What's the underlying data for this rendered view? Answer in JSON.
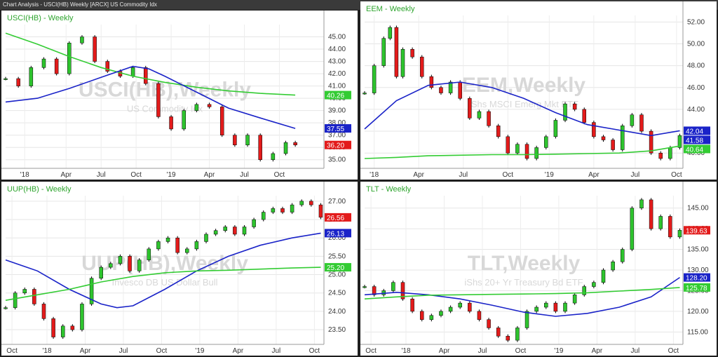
{
  "window": {
    "title": "Chart Analysis - USCI(HB) Weekly [ARCX] US Commodity Idx"
  },
  "chart_data": [
    {
      "panel": "top-left",
      "type": "line",
      "label": "USCI(HB) - Weekly",
      "watermark_title": "USCI(HB),Weekly",
      "watermark_subtitle": "US Commodity Idx",
      "ylim": [
        34.3,
        46.0
      ],
      "y_ticks": [
        "45.00",
        "44.00",
        "43.00",
        "42.00",
        "41.00",
        "40.00",
        "39.00",
        "38.00",
        "37.00",
        "36.00",
        "35.00"
      ],
      "y_tick_values": [
        45,
        44,
        43,
        42,
        41,
        40,
        39,
        38,
        37,
        36,
        35
      ],
      "x_range": [
        0,
        100
      ],
      "x_ticks": [
        "'18",
        "Apr",
        "Jul",
        "Oct",
        "'19",
        "Apr",
        "Jul",
        "Oct"
      ],
      "x_tick_pos": [
        6,
        19,
        30,
        41,
        52,
        64,
        75,
        86
      ],
      "series": [
        {
          "name": "price",
          "color": "#000000",
          "x": [
            0,
            4,
            8,
            12,
            16,
            20,
            24,
            28,
            32,
            36,
            40,
            44,
            48,
            52,
            56,
            60,
            64,
            68,
            72,
            76,
            80,
            84,
            88,
            91
          ],
          "values": [
            41.6,
            41.0,
            42.5,
            43.2,
            42.0,
            44.5,
            45.0,
            43.0,
            42.2,
            41.8,
            42.5,
            41.2,
            38.5,
            37.5,
            39.0,
            39.5,
            39.3,
            37.0,
            36.2,
            37.0,
            35.0,
            35.5,
            36.4,
            36.2
          ]
        },
        {
          "name": "MA slow",
          "color": "#33cc33",
          "x": [
            0,
            10,
            20,
            30,
            40,
            50,
            60,
            70,
            80,
            91
          ],
          "values": [
            45.3,
            44.4,
            43.4,
            42.5,
            41.8,
            41.3,
            40.9,
            40.6,
            40.4,
            40.26
          ]
        },
        {
          "name": "MA fast",
          "color": "#1a23c8",
          "x": [
            0,
            10,
            20,
            30,
            40,
            45,
            50,
            60,
            70,
            80,
            91
          ],
          "values": [
            39.7,
            40.0,
            40.8,
            41.7,
            42.6,
            42.4,
            41.8,
            40.5,
            39.2,
            38.4,
            37.55
          ]
        }
      ],
      "value_badges": [
        {
          "value": "40.26",
          "color": "#33cc33"
        },
        {
          "value": "37.55",
          "color": "#1a23c8"
        },
        {
          "value": "36.20",
          "color": "#e31b1b"
        }
      ]
    },
    {
      "panel": "top-right",
      "type": "line",
      "label": "EEM - Weekly",
      "watermark_title": "EEM,Weekly",
      "watermark_subtitle": "iShs MSCI Emerg Mkt ETF",
      "ylim": [
        38.6,
        52.6
      ],
      "y_ticks": [
        "52.00",
        "50.00",
        "48.00",
        "46.00",
        "44.00",
        "42.00",
        "40.00"
      ],
      "y_tick_values": [
        52,
        50,
        48,
        46,
        44,
        42,
        40
      ],
      "x_range": [
        0,
        100
      ],
      "x_ticks": [
        "'18",
        "Apr",
        "Jul",
        "Oct",
        "'19",
        "Apr",
        "Jul",
        "Oct"
      ],
      "x_tick_pos": [
        3,
        17,
        31,
        45,
        58,
        72,
        85,
        98
      ],
      "series": [
        {
          "name": "price",
          "color": "#000000",
          "x": [
            0,
            3,
            6,
            8,
            10,
            12,
            15,
            18,
            21,
            24,
            27,
            30,
            33,
            36,
            39,
            42,
            45,
            48,
            51,
            54,
            57,
            60,
            63,
            66,
            69,
            72,
            75,
            78,
            81,
            84,
            87,
            90,
            93,
            96,
            99
          ],
          "values": [
            45.5,
            48.0,
            50.5,
            51.5,
            47.0,
            49.5,
            48.8,
            47.0,
            46.0,
            45.5,
            46.5,
            45.0,
            43.2,
            43.8,
            42.5,
            41.5,
            40.0,
            40.8,
            39.5,
            40.5,
            41.5,
            43.0,
            44.5,
            44.0,
            42.8,
            41.5,
            41.2,
            40.3,
            42.5,
            43.5,
            42.0,
            40.0,
            39.5,
            40.5,
            41.6
          ]
        },
        {
          "name": "MA fast",
          "color": "#1a23c8",
          "x": [
            0,
            10,
            20,
            30,
            40,
            50,
            60,
            70,
            80,
            90,
            99
          ],
          "values": [
            42.2,
            44.8,
            46.2,
            46.5,
            46.0,
            45.0,
            43.7,
            42.6,
            42.1,
            41.6,
            42.04
          ]
        },
        {
          "name": "MA slow",
          "color": "#33cc33",
          "x": [
            0,
            10,
            20,
            30,
            40,
            50,
            60,
            70,
            80,
            90,
            99
          ],
          "values": [
            39.5,
            39.6,
            39.75,
            39.8,
            39.85,
            39.85,
            39.9,
            39.95,
            40.0,
            40.2,
            40.64
          ]
        }
      ],
      "value_badges": [
        {
          "value": "42.04",
          "color": "#1a23c8"
        },
        {
          "value": "41.58",
          "color": "#1a23c8"
        },
        {
          "value": "40.64",
          "color": "#33cc33"
        }
      ]
    },
    {
      "panel": "bottom-left",
      "type": "line",
      "label": "UUP(HB) - Weekly",
      "watermark_title": "UUP(HB),Weekly",
      "watermark_subtitle": "Invesco DB US Dollar Bull",
      "ylim": [
        23.1,
        27.15
      ],
      "y_ticks": [
        "27.00",
        "26.50",
        "26.00",
        "25.50",
        "25.00",
        "24.50",
        "24.00",
        "23.50"
      ],
      "y_tick_values": [
        27,
        26.5,
        26,
        25.5,
        25,
        24.5,
        24,
        23.5
      ],
      "x_range": [
        0,
        100
      ],
      "x_ticks": [
        "Oct",
        "'18",
        "Apr",
        "Jul",
        "Oct",
        "'19",
        "Apr",
        "Jul",
        "Oct"
      ],
      "x_tick_pos": [
        2,
        13,
        25,
        37,
        49,
        61,
        73,
        85,
        97
      ],
      "series": [
        {
          "name": "price",
          "color": "#000000",
          "x": [
            0,
            3,
            6,
            9,
            12,
            15,
            18,
            21,
            24,
            27,
            30,
            33,
            36,
            39,
            42,
            45,
            48,
            51,
            54,
            57,
            60,
            63,
            66,
            69,
            72,
            75,
            78,
            81,
            84,
            87,
            90,
            93,
            96,
            99
          ],
          "values": [
            24.1,
            24.5,
            24.6,
            24.2,
            23.8,
            23.3,
            23.6,
            23.5,
            24.2,
            24.9,
            25.2,
            25.3,
            25.5,
            25.1,
            25.4,
            25.7,
            25.9,
            26.0,
            25.6,
            25.7,
            25.9,
            26.1,
            26.2,
            26.3,
            26.1,
            26.3,
            26.5,
            26.7,
            26.8,
            26.7,
            26.9,
            27.0,
            26.9,
            26.56
          ]
        },
        {
          "name": "MA fast",
          "color": "#1a23c8",
          "x": [
            0,
            10,
            20,
            30,
            35,
            40,
            50,
            60,
            70,
            80,
            90,
            99
          ],
          "values": [
            25.4,
            25.1,
            24.6,
            24.2,
            24.1,
            24.15,
            24.6,
            25.1,
            25.5,
            25.8,
            26.0,
            26.13
          ]
        },
        {
          "name": "MA slow",
          "color": "#33cc33",
          "x": [
            0,
            10,
            20,
            30,
            40,
            50,
            60,
            70,
            80,
            90,
            99
          ],
          "values": [
            24.3,
            24.45,
            24.6,
            24.8,
            24.95,
            25.05,
            25.1,
            25.12,
            25.15,
            25.18,
            25.2
          ]
        }
      ],
      "value_badges": [
        {
          "value": "26.56",
          "color": "#e31b1b"
        },
        {
          "value": "26.13",
          "color": "#1a23c8"
        },
        {
          "value": "25.20",
          "color": "#33cc33"
        }
      ]
    },
    {
      "panel": "bottom-right",
      "type": "line",
      "label": "TLT - Weekly",
      "watermark_title": "TLT,Weekly",
      "watermark_subtitle": "iShs 20+ Yr Treasury Bd ETF",
      "ylim": [
        112,
        148
      ],
      "y_ticks": [
        "145.00",
        "140.00",
        "135.00",
        "130.00",
        "125.00",
        "120.00",
        "115.00"
      ],
      "y_tick_values": [
        145,
        140,
        135,
        130,
        125,
        120,
        115
      ],
      "x_range": [
        0,
        100
      ],
      "x_ticks": [
        "Oct",
        "'18",
        "Apr",
        "Jul",
        "Oct",
        "'19",
        "Apr",
        "Jul",
        "Oct"
      ],
      "x_tick_pos": [
        2,
        13,
        25,
        37,
        49,
        61,
        73,
        85,
        97
      ],
      "series": [
        {
          "name": "price",
          "color": "#000000",
          "x": [
            0,
            3,
            6,
            9,
            12,
            15,
            18,
            21,
            24,
            27,
            30,
            33,
            36,
            39,
            42,
            45,
            48,
            51,
            54,
            57,
            60,
            63,
            66,
            69,
            72,
            75,
            78,
            81,
            84,
            87,
            90,
            93,
            96,
            99
          ],
          "values": [
            126,
            124,
            125,
            127,
            123,
            120,
            118,
            119,
            120,
            121,
            122,
            120,
            118,
            116,
            114,
            113,
            116,
            120,
            121,
            122,
            120,
            122,
            124,
            126,
            127,
            130,
            132,
            135,
            145,
            147,
            140,
            143,
            138,
            139.63
          ]
        },
        {
          "name": "MA fast",
          "color": "#1a23c8",
          "x": [
            0,
            10,
            20,
            30,
            40,
            50,
            60,
            70,
            80,
            90,
            99
          ],
          "values": [
            124,
            124.6,
            124.0,
            123.0,
            121.5,
            119.8,
            118.8,
            119.5,
            121.0,
            123.5,
            128.2
          ]
        },
        {
          "name": "MA slow",
          "color": "#33cc33",
          "x": [
            0,
            10,
            20,
            30,
            40,
            50,
            60,
            70,
            80,
            90,
            99
          ],
          "values": [
            123,
            123.5,
            123.9,
            124.0,
            124.1,
            124.2,
            124.3,
            124.5,
            124.9,
            125.3,
            125.78
          ]
        }
      ],
      "value_badges": [
        {
          "value": "139.63",
          "color": "#e31b1b"
        },
        {
          "value": "128.20",
          "color": "#1a23c8"
        },
        {
          "value": "125.78",
          "color": "#33cc33"
        }
      ]
    }
  ]
}
